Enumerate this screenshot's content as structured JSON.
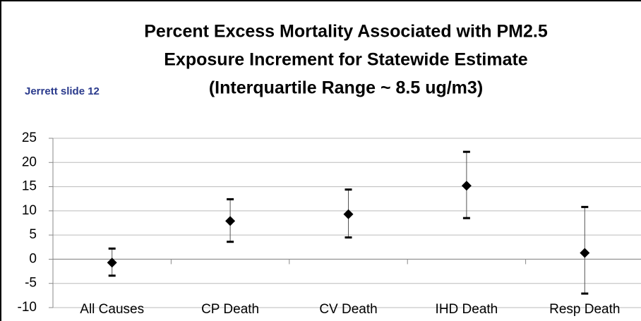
{
  "chart_data": {
    "type": "errorbar",
    "title": [
      "Percent Excess Mortality Associated with PM2.5",
      "Exposure Increment for Statewide Estimate",
      "(Interquartile Range ~ 8.5 ug/m3)"
    ],
    "annotation": "Jerrett slide 12",
    "categories": [
      "All Causes",
      "CP Death",
      "CV Death",
      "IHD Death",
      "Resp Death"
    ],
    "values": [
      -0.7,
      7.9,
      9.3,
      15.2,
      1.3
    ],
    "lower": [
      -3.4,
      3.6,
      4.5,
      8.5,
      -7.1
    ],
    "upper": [
      2.2,
      12.4,
      14.4,
      22.2,
      10.8
    ],
    "color": "#000000",
    "ylim": [
      -10,
      25
    ],
    "yticks": [
      -10,
      -5,
      0,
      5,
      10,
      15,
      20,
      25
    ],
    "grid": true
  }
}
